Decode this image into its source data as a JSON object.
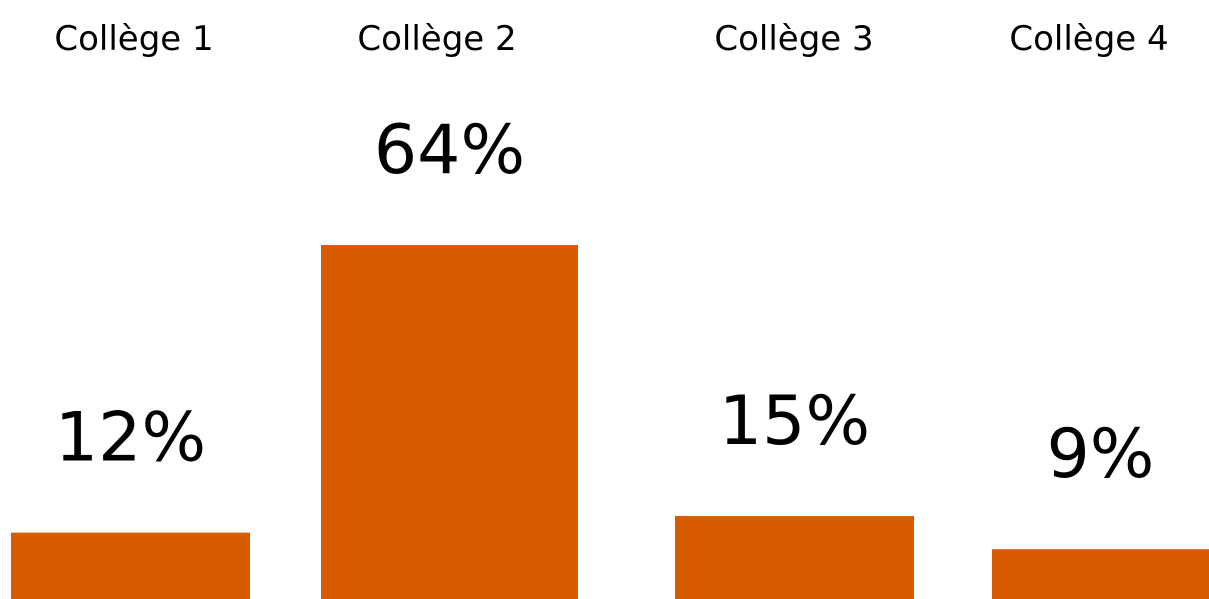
{
  "chart_data": {
    "type": "bar",
    "categories": [
      "Collège 1",
      "Collège 2",
      "Collège 3",
      "Collège 4"
    ],
    "values": [
      12,
      64,
      15,
      9
    ],
    "value_labels": [
      "12%",
      "64%",
      "15%",
      "9%"
    ],
    "bar_color": "#D95B00",
    "text_color": "#000000",
    "background": "#FFFFFF",
    "grid": false,
    "legend": false,
    "category_labels_position": "top",
    "xlabel": "",
    "ylabel": "",
    "title": ""
  }
}
